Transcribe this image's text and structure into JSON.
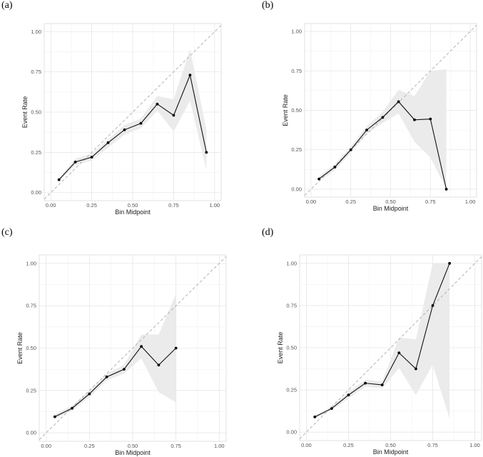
{
  "chart_data": [
    {
      "type": "line",
      "panel": "(a)",
      "xlabel": "Bin Midpoint",
      "ylabel": "Event Rate",
      "xlim": [
        -0.04,
        1.04
      ],
      "ylim": [
        -0.05,
        1.05
      ],
      "xticks": [
        0.0,
        0.25,
        0.5,
        0.75,
        1.0
      ],
      "xtick_labels": [
        "0.00",
        "0.25",
        "0.50",
        "0.75",
        "1.00"
      ],
      "yticks": [
        0.0,
        0.25,
        0.5,
        0.75,
        1.0
      ],
      "ytick_labels": [
        "0.00",
        "0.25",
        "0.50",
        "0.75",
        "1.00"
      ],
      "reference_line": "diagonal dashed y = x",
      "series": [
        {
          "name": "Event Rate",
          "x": [
            0.05,
            0.15,
            0.25,
            0.35,
            0.45,
            0.55,
            0.65,
            0.75,
            0.85,
            0.95
          ],
          "y": [
            0.08,
            0.19,
            0.22,
            0.31,
            0.39,
            0.43,
            0.55,
            0.48,
            0.73,
            0.25
          ],
          "lower": [
            0.07,
            0.17,
            0.2,
            0.28,
            0.36,
            0.4,
            0.51,
            0.38,
            0.57,
            0.14
          ],
          "upper": [
            0.09,
            0.21,
            0.24,
            0.33,
            0.42,
            0.46,
            0.6,
            0.58,
            0.89,
            0.39
          ]
        }
      ]
    },
    {
      "type": "line",
      "panel": "(b)",
      "xlabel": "Bin Midpoint",
      "ylabel": "Event Rate",
      "xlim": [
        -0.04,
        1.04
      ],
      "ylim": [
        -0.05,
        1.05
      ],
      "xticks": [
        0.0,
        0.25,
        0.5,
        0.75,
        1.0
      ],
      "xtick_labels": [
        "0.00",
        "0.25",
        "0.50",
        "0.75",
        "1.00"
      ],
      "yticks": [
        0.0,
        0.25,
        0.5,
        0.75,
        1.0
      ],
      "ytick_labels": [
        "0.00",
        "0.25",
        "0.50",
        "0.75",
        "1.00"
      ],
      "reference_line": "diagonal dashed y = x",
      "series": [
        {
          "name": "Event Rate",
          "x": [
            0.05,
            0.15,
            0.25,
            0.35,
            0.45,
            0.55,
            0.65,
            0.75,
            0.85
          ],
          "y": [
            0.065,
            0.14,
            0.25,
            0.375,
            0.455,
            0.555,
            0.44,
            0.445,
            0.0
          ],
          "lower": [
            0.05,
            0.12,
            0.23,
            0.35,
            0.42,
            0.48,
            0.3,
            0.2,
            0.0
          ],
          "upper": [
            0.08,
            0.16,
            0.27,
            0.4,
            0.49,
            0.63,
            0.59,
            0.75,
            0.76
          ]
        }
      ]
    },
    {
      "type": "line",
      "panel": "(c)",
      "xlabel": "Bin Midpoint",
      "ylabel": "Event Rate",
      "xlim": [
        -0.04,
        1.04
      ],
      "ylim": [
        -0.05,
        1.05
      ],
      "xticks": [
        0.0,
        0.25,
        0.5,
        0.75,
        1.0
      ],
      "xtick_labels": [
        "0.00",
        "0.25",
        "0.50",
        "0.75",
        "1.00"
      ],
      "yticks": [
        0.0,
        0.25,
        0.5,
        0.75,
        1.0
      ],
      "ytick_labels": [
        "0.00",
        "0.25",
        "0.50",
        "0.75",
        "1.00"
      ],
      "reference_line": "diagonal dashed y = x",
      "series": [
        {
          "name": "Event Rate",
          "x": [
            0.05,
            0.15,
            0.25,
            0.35,
            0.45,
            0.55,
            0.65,
            0.75
          ],
          "y": [
            0.095,
            0.145,
            0.23,
            0.33,
            0.375,
            0.51,
            0.4,
            0.5
          ],
          "lower": [
            0.08,
            0.13,
            0.21,
            0.31,
            0.35,
            0.44,
            0.24,
            0.18
          ],
          "upper": [
            0.11,
            0.16,
            0.25,
            0.35,
            0.4,
            0.58,
            0.58,
            0.82
          ]
        }
      ]
    },
    {
      "type": "line",
      "panel": "(d)",
      "xlabel": "Bin Midpoint",
      "ylabel": "Event Rate",
      "xlim": [
        -0.04,
        1.04
      ],
      "ylim": [
        -0.05,
        1.05
      ],
      "xticks": [
        0.0,
        0.25,
        0.5,
        0.75,
        1.0
      ],
      "xtick_labels": [
        "0.00",
        "0.25",
        "0.50",
        "0.75",
        "1.00"
      ],
      "yticks": [
        0.0,
        0.25,
        0.5,
        0.75,
        1.0
      ],
      "ytick_labels": [
        "0.00",
        "0.25",
        "0.50",
        "0.75",
        "1.00"
      ],
      "reference_line": "diagonal dashed y = x",
      "series": [
        {
          "name": "Event Rate",
          "x": [
            0.05,
            0.15,
            0.25,
            0.35,
            0.45,
            0.55,
            0.65,
            0.75,
            0.85
          ],
          "y": [
            0.09,
            0.14,
            0.22,
            0.29,
            0.28,
            0.47,
            0.375,
            0.75,
            1.0
          ],
          "lower": [
            0.08,
            0.13,
            0.2,
            0.27,
            0.26,
            0.38,
            0.22,
            0.4,
            0.08
          ],
          "upper": [
            0.1,
            0.15,
            0.24,
            0.31,
            0.3,
            0.56,
            0.55,
            1.0,
            1.0
          ]
        }
      ]
    }
  ]
}
